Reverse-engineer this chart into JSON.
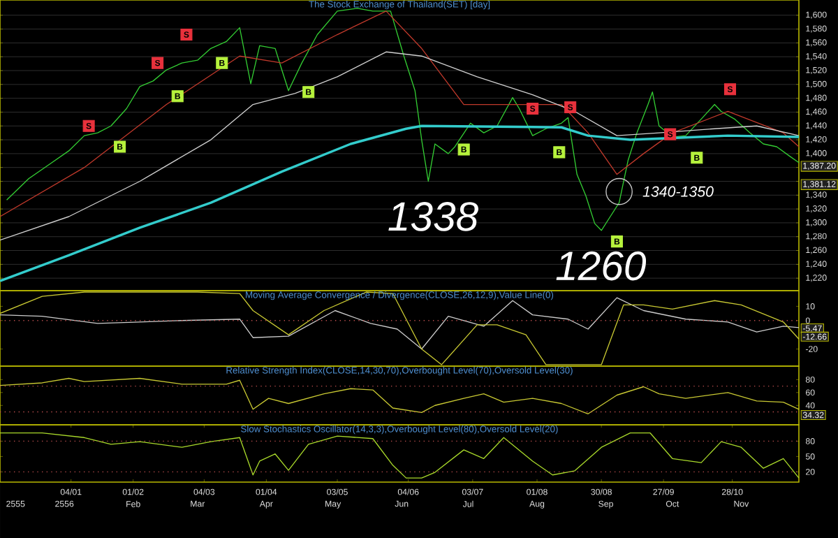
{
  "chart_data": [
    {
      "type": "line",
      "title": "The Stock Exchange of Thailand(SET) [day]",
      "xlim": [
        "2555-12-03",
        "2556-11-27"
      ],
      "ylim": [
        1202,
        1622
      ],
      "grid": "y",
      "tick_labels": "y",
      "yticks": [
        {
          "value": 1220,
          "label": "1,220"
        },
        {
          "value": 1240,
          "label": "1,240"
        },
        {
          "value": 1260,
          "label": "1,260"
        },
        {
          "value": 1280,
          "label": "1,280"
        },
        {
          "value": 1300,
          "label": "1,300"
        },
        {
          "value": 1320,
          "label": "1,320"
        },
        {
          "value": 1340,
          "label": "1,340"
        },
        {
          "value": 1360,
          "label": null
        },
        {
          "value": 1380,
          "label": null
        },
        {
          "value": 1400,
          "label": "1,400"
        },
        {
          "value": 1420,
          "label": "1,420"
        },
        {
          "value": 1440,
          "label": "1,440"
        },
        {
          "value": 1460,
          "label": "1,460"
        },
        {
          "value": 1480,
          "label": "1,480"
        },
        {
          "value": 1500,
          "label": "1,500"
        },
        {
          "value": 1520,
          "label": "1,520"
        },
        {
          "value": 1540,
          "label": "1,540"
        },
        {
          "value": 1560,
          "label": "1,560"
        },
        {
          "value": 1580,
          "label": "1,580"
        },
        {
          "value": 1600,
          "label": "1,600"
        }
      ],
      "series": [
        {
          "color": "#33cc33",
          "x": [
            "2555-12-06",
            "2555-12-16",
            "2555-12-25",
            "2556-01-03",
            "2556-01-10",
            "2556-01-16",
            "2556-01-22",
            "2556-01-29",
            "2556-02-04",
            "2556-02-10",
            "2556-02-16",
            "2556-02-23",
            "2556-03-01",
            "2556-03-07",
            "2556-03-14",
            "2556-03-20",
            "2556-03-25",
            "2556-03-29",
            "2556-04-05",
            "2556-04-08",
            "2556-04-11",
            "2556-04-17",
            "2556-04-24",
            "2556-05-03",
            "2556-05-12",
            "2556-05-19",
            "2556-05-27",
            "2556-06-02",
            "2556-06-07",
            "2556-06-10",
            "2556-06-13",
            "2556-06-16",
            "2556-06-22",
            "2556-06-25",
            "2556-07-02",
            "2556-07-08",
            "2556-07-14",
            "2556-07-21",
            "2556-07-24",
            "2556-07-30",
            "2556-08-05",
            "2556-08-12",
            "2556-08-15",
            "2556-08-19",
            "2556-08-23",
            "2556-08-27",
            "2556-08-30",
            "2556-09-03",
            "2556-09-07",
            "2556-09-11",
            "2556-09-15",
            "2556-09-20",
            "2556-09-22",
            "2556-09-25",
            "2556-10-01",
            "2556-10-07",
            "2556-10-14",
            "2556-10-20",
            "2556-10-23",
            "2556-10-29",
            "2556-11-05",
            "2556-11-11",
            "2556-11-17",
            "2556-11-23",
            "2556-11-27"
          ],
          "values": [
            1333,
            1364,
            1384,
            1404,
            1426,
            1430,
            1440,
            1465,
            1497,
            1505,
            1521,
            1531,
            1535,
            1552,
            1562,
            1582,
            1501,
            1556,
            1552,
            1521,
            1491,
            1531,
            1572,
            1606,
            1610,
            1606,
            1606,
            1541,
            1491,
            1420,
            1360,
            1414,
            1400,
            1410,
            1444,
            1430,
            1440,
            1481,
            1465,
            1426,
            1436,
            1444,
            1452,
            1370,
            1339,
            1299,
            1289,
            1309,
            1329,
            1390,
            1430,
            1471,
            1489,
            1440,
            1424,
            1426,
            1450,
            1471,
            1461,
            1450,
            1430,
            1414,
            1410,
            1396,
            1387
          ]
        },
        {
          "color": "#c0392b",
          "x": [
            "2555-12-03",
            "2556-01-10",
            "2556-02-16",
            "2556-03-20",
            "2556-04-08",
            "2556-05-03",
            "2556-05-25",
            "2556-06-10",
            "2556-06-29",
            "2556-07-17",
            "2556-08-12",
            "2556-08-24",
            "2556-09-06",
            "2556-09-18",
            "2556-10-01",
            "2556-10-26",
            "2556-11-20",
            "2556-11-27"
          ],
          "values": [
            1309,
            1380,
            1471,
            1541,
            1531,
            1572,
            1606,
            1552,
            1471,
            1471,
            1471,
            1430,
            1370,
            1400,
            1430,
            1461,
            1430,
            1410
          ]
        },
        {
          "color": "#d0d0d0",
          "x": [
            "2555-12-03",
            "2556-01-03",
            "2556-02-04",
            "2556-03-07",
            "2556-03-26",
            "2556-04-14",
            "2556-05-03",
            "2556-05-25",
            "2556-06-10",
            "2556-07-05",
            "2556-07-30",
            "2556-08-18",
            "2556-09-06",
            "2556-09-25",
            "2556-10-20",
            "2556-11-08",
            "2556-11-27"
          ],
          "values": [
            1275,
            1309,
            1360,
            1420,
            1471,
            1487,
            1511,
            1547,
            1541,
            1511,
            1485,
            1461,
            1426,
            1430,
            1436,
            1440,
            1426
          ]
        },
        {
          "color": "#33cccc",
          "x": [
            "2555-12-03",
            "2556-01-03",
            "2556-02-04",
            "2556-03-07",
            "2556-04-08",
            "2556-05-09",
            "2556-06-03",
            "2556-06-10",
            "2556-08-12",
            "2556-08-24",
            "2556-09-12",
            "2556-10-26",
            "2556-11-27"
          ],
          "values": [
            1216,
            1253,
            1293,
            1329,
            1374,
            1414,
            1436,
            1440,
            1438,
            1426,
            1420,
            1426,
            1424
          ]
        },
        {
          "type": "scatter",
          "marker": "square",
          "color": "#e8313c",
          "x": [
            "2556-01-12",
            "2556-02-12",
            "2556-02-25",
            "2556-07-30",
            "2556-08-16",
            "2556-09-30",
            "2556-10-27"
          ],
          "values": [
            1440,
            1531,
            1572,
            1465,
            1467,
            1428,
            1493
          ],
          "value_labels": [
            "S",
            "S",
            "S",
            "S",
            "S",
            "S",
            "S"
          ]
        },
        {
          "type": "scatter",
          "marker": "square",
          "color": "#b6f23c",
          "x": [
            "2556-01-26",
            "2556-02-21",
            "2556-03-12",
            "2556-04-20",
            "2556-06-29",
            "2556-08-11",
            "2556-09-06",
            "2556-10-12"
          ],
          "values": [
            1410,
            1483,
            1531,
            1489,
            1406,
            1402,
            1273,
            1394
          ],
          "value_labels": [
            "B",
            "B",
            "B",
            "B",
            "B",
            "B",
            "B",
            "B"
          ]
        }
      ],
      "annotations": [
        "1338",
        "1260",
        "1340-1350",
        "1,387.20",
        "1,381.12"
      ]
    },
    {
      "type": "line",
      "title": "Moving Average Convergence / Divergence(CLOSE,26,12,9),Value Line(0)",
      "xlim": [
        "2555-12-03",
        "2556-11-27"
      ],
      "ylim": [
        -32,
        21
      ],
      "yticks": [
        -20,
        0,
        10
      ],
      "tick_labels": "y",
      "series": [
        {
          "color": "#cccccc",
          "x": [
            "2555-12-03",
            "2555-12-22",
            "2556-01-16",
            "2556-02-04",
            "2556-02-23",
            "2556-03-20",
            "2556-03-26",
            "2556-04-11",
            "2556-05-02",
            "2556-05-18",
            "2556-05-30",
            "2556-06-10",
            "2556-06-22",
            "2556-07-08",
            "2556-07-21",
            "2556-07-30",
            "2556-08-15",
            "2556-08-24",
            "2556-09-06",
            "2556-09-18",
            "2556-10-07",
            "2556-10-26",
            "2556-11-08",
            "2556-11-20",
            "2556-11-27"
          ],
          "values": [
            4,
            3,
            -2,
            -1,
            0,
            1,
            -12,
            -11,
            7,
            -2,
            -6,
            -20,
            3,
            -4,
            14,
            4,
            1,
            -6,
            16,
            7,
            1,
            -1,
            -8,
            -4,
            -5
          ]
        },
        {
          "color": "#c8c832",
          "x": [
            "2555-12-03",
            "2555-12-22",
            "2556-01-10",
            "2556-02-04",
            "2556-03-01",
            "2556-03-20",
            "2556-03-26",
            "2556-04-11",
            "2556-04-27",
            "2556-05-16",
            "2556-05-28",
            "2556-06-10",
            "2556-06-19",
            "2556-07-05",
            "2556-07-14",
            "2556-07-27",
            "2556-08-05",
            "2556-08-30",
            "2556-09-09",
            "2556-09-18",
            "2556-10-01",
            "2556-10-20",
            "2556-11-01",
            "2556-11-20",
            "2556-11-27"
          ],
          "values": [
            5,
            17,
            20,
            20,
            20,
            19,
            7,
            -10,
            7,
            20,
            19,
            -20,
            -31,
            -3,
            -3,
            -10,
            -31,
            -31,
            11,
            11,
            8,
            14,
            11,
            -1,
            -13
          ]
        }
      ],
      "ref_lines": [
        {
          "axis": "y",
          "value": 0,
          "color": "#c05050",
          "line_style": "dotted"
        }
      ],
      "annotations": [
        "-5.47",
        "-12.66"
      ]
    },
    {
      "type": "line",
      "title": "Relative Strength Index(CLOSE,14,30,70),Overbought Level(70),Oversold Level(30)",
      "xlim": [
        "2555-12-03",
        "2556-11-27"
      ],
      "ylim": [
        10,
        101
      ],
      "yticks": [
        40,
        60,
        80
      ],
      "tick_labels": "y",
      "series": [
        {
          "color": "#c8c832",
          "x": [
            "2555-12-03",
            "2555-12-22",
            "2556-01-03",
            "2556-01-10",
            "2556-02-04",
            "2556-02-23",
            "2556-03-14",
            "2556-03-20",
            "2556-03-26",
            "2556-04-02",
            "2556-04-11",
            "2556-04-27",
            "2556-05-09",
            "2556-05-19",
            "2556-05-28",
            "2556-06-10",
            "2556-06-16",
            "2556-06-29",
            "2556-07-08",
            "2556-07-17",
            "2556-07-30",
            "2556-08-12",
            "2556-08-24",
            "2556-09-06",
            "2556-09-18",
            "2556-09-25",
            "2556-10-07",
            "2556-10-26",
            "2556-11-08",
            "2556-11-20",
            "2556-11-27"
          ],
          "values": [
            71,
            75,
            82,
            77,
            82,
            73,
            73,
            79,
            34,
            51,
            43,
            58,
            66,
            64,
            36,
            29,
            40,
            51,
            58,
            45,
            51,
            43,
            27,
            56,
            69,
            58,
            51,
            60,
            47,
            45,
            34
          ]
        }
      ],
      "ref_lines": [
        {
          "axis": "y",
          "value": 70,
          "color": "#c05050",
          "line_style": "dotted"
        },
        {
          "axis": "y",
          "value": 30,
          "color": "#c05050",
          "line_style": "dotted"
        }
      ],
      "annotations": [
        "34.32"
      ]
    },
    {
      "type": "line",
      "title": "Slow Stochastics Oscillator(14,3,3),Overbought Level(80),Oversold Level(20)",
      "xlim": [
        "2555-12-03",
        "2556-11-27"
      ],
      "ylim": [
        0,
        112
      ],
      "yticks": [
        20,
        50,
        80
      ],
      "xticks": [
        {
          "value": "2556-01-04",
          "label": "04/01"
        },
        {
          "value": "2556-02-01",
          "label": "01/02"
        },
        {
          "value": "2556-03-04",
          "label": "04/03"
        },
        {
          "value": "2556-04-01",
          "label": "01/04"
        },
        {
          "value": "2556-05-03",
          "label": "03/05"
        },
        {
          "value": "2556-06-04",
          "label": "04/06"
        },
        {
          "value": "2556-07-03",
          "label": "03/07"
        },
        {
          "value": "2556-08-01",
          "label": "01/08"
        },
        {
          "value": "2556-08-30",
          "label": "30/08"
        },
        {
          "value": "2556-09-27",
          "label": "27/09"
        },
        {
          "value": "2556-10-28",
          "label": "28/10"
        }
      ],
      "x2lim": [
        "2555-12-03",
        "2556-11-27"
      ],
      "x2ticks": [
        {
          "value": "2555-12-10",
          "label": "2555"
        },
        {
          "value": "2556-01-01",
          "label": "2556"
        },
        {
          "value": "2556-02-01",
          "label": "Feb"
        },
        {
          "value": "2556-03-01",
          "label": "Mar"
        },
        {
          "value": "2556-04-01",
          "label": "Apr"
        },
        {
          "value": "2556-05-01",
          "label": "May"
        },
        {
          "value": "2556-06-01",
          "label": "Jun"
        },
        {
          "value": "2556-07-01",
          "label": "Jul"
        },
        {
          "value": "2556-08-01",
          "label": "Aug"
        },
        {
          "value": "2556-09-01",
          "label": "Sep"
        },
        {
          "value": "2556-10-01",
          "label": "Oct"
        },
        {
          "value": "2556-11-01",
          "label": "Nov"
        }
      ],
      "series": [
        {
          "color": "#a8d82a",
          "x": [
            "2555-12-03",
            "2555-12-22",
            "2556-01-10",
            "2556-01-22",
            "2556-02-04",
            "2556-02-23",
            "2556-03-07",
            "2556-03-20",
            "2556-03-26",
            "2556-03-29",
            "2556-04-05",
            "2556-04-11",
            "2556-04-20",
            "2556-05-03",
            "2556-05-19",
            "2556-05-28",
            "2556-06-03",
            "2556-06-10",
            "2556-06-16",
            "2556-06-29",
            "2556-07-08",
            "2556-07-17",
            "2556-07-30",
            "2556-08-08",
            "2556-08-18",
            "2556-08-30",
            "2556-09-12",
            "2556-09-21",
            "2556-10-01",
            "2556-10-14",
            "2556-10-23",
            "2556-11-01",
            "2556-11-11",
            "2556-11-20",
            "2556-11-27"
          ],
          "values": [
            96,
            96,
            87,
            74,
            79,
            68,
            79,
            87,
            14,
            41,
            55,
            23,
            74,
            90,
            85,
            33,
            8,
            8,
            19,
            63,
            46,
            87,
            41,
            14,
            22,
            68,
            96,
            96,
            46,
            38,
            79,
            68,
            27,
            46,
            8
          ]
        }
      ],
      "ref_lines": [
        {
          "axis": "y",
          "value": 80,
          "color": "#c05050",
          "line_style": "dotted"
        },
        {
          "axis": "y",
          "value": 20,
          "color": "#c05050",
          "line_style": "dotted"
        }
      ]
    }
  ]
}
